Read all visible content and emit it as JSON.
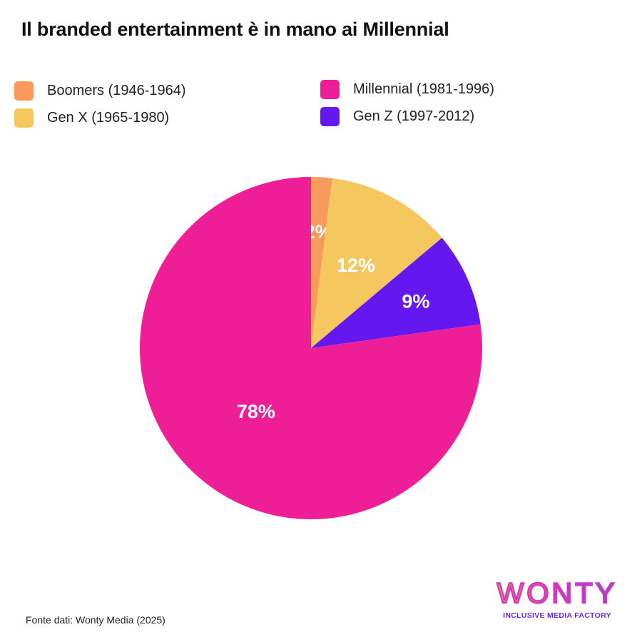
{
  "title": "Il branded entertainment è in mano ai Millennial",
  "source": "Fonte dati: Wonty Media (2025)",
  "logo": {
    "wordmark": "WONTY",
    "tagline": "INCLUSIVE MEDIA FACTORY"
  },
  "colors": {
    "boomers": "#f79a5c",
    "genx": "#f5c85f",
    "millennial": "#ee1f96",
    "genz": "#6517f0"
  },
  "chart_data": {
    "type": "pie",
    "title": "Il branded entertainment è in mano ai Millennial",
    "legend": "top",
    "slices": [
      {
        "label": "Boomers (1946-1964)",
        "value": 2,
        "display": "2%",
        "color": "#f79a5c"
      },
      {
        "label": "Gen X (1965-1980)",
        "value": 12,
        "display": "12%",
        "color": "#f5c85f"
      },
      {
        "label": "Gen Z (1997-2012)",
        "value": 9,
        "display": "9%",
        "color": "#6517f0"
      },
      {
        "label": "Millennial (1981-1996)",
        "value": 78,
        "display": "78%",
        "color": "#ee1f96"
      }
    ],
    "legend_items": [
      {
        "label": "Boomers (1946-1964)",
        "color": "#f79a5c"
      },
      {
        "label": "Gen X (1965-1980)",
        "color": "#f5c85f"
      },
      {
        "label": "Millennial (1981-1996)",
        "color": "#ee1f96"
      },
      {
        "label": "Gen Z (1997-2012)",
        "color": "#6517f0"
      }
    ]
  }
}
